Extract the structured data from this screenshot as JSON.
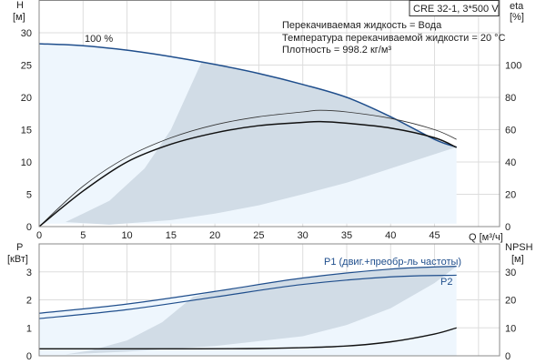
{
  "chart_data": [
    {
      "type": "line",
      "title": "CRE 32-1, 3*500 V",
      "annotations": [
        "Перекачиваемая жидкость = Вода",
        "Температура перекачиваемой жидкости = 20 °C",
        "Плотность = 998.2 кг/м³"
      ],
      "curve_label": "100 %",
      "xlabel": "Q [м³/ч]",
      "ylabel_top": "H",
      "ylabel_unit": "[м]",
      "y2label_top": "eta",
      "y2label_unit": "[%]",
      "xlim": [
        0,
        52.4
      ],
      "ylim": [
        0,
        35
      ],
      "y2lim": [
        0,
        140
      ],
      "xticks": [
        0,
        5,
        10,
        15,
        20,
        25,
        30,
        35,
        40,
        45
      ],
      "yticks": [
        0,
        5,
        10,
        15,
        20,
        25,
        30
      ],
      "y2ticks": [
        0,
        20,
        40,
        60,
        80,
        100
      ],
      "grid": true,
      "series": [
        {
          "name": "H",
          "axis": "left",
          "color": "#1f4e8c",
          "x": [
            0,
            5,
            10,
            15,
            20,
            25,
            30,
            35,
            40,
            45,
            47.5
          ],
          "y": [
            28.3,
            28,
            27.3,
            26.3,
            25.1,
            23.7,
            22,
            20,
            17,
            13.5,
            12.3
          ]
        },
        {
          "name": "eta1",
          "axis": "right",
          "color": "#333333",
          "x": [
            0,
            5,
            10,
            15,
            20,
            25,
            30,
            32,
            35,
            40,
            45,
            47.5
          ],
          "y": [
            0,
            25,
            43,
            55,
            63,
            68,
            71,
            72,
            71,
            67,
            60,
            54
          ]
        },
        {
          "name": "eta2",
          "axis": "right",
          "color": "#111111",
          "x": [
            0,
            5,
            10,
            15,
            20,
            25,
            30,
            32,
            35,
            40,
            45,
            47.5
          ],
          "y": [
            0,
            22,
            40,
            51,
            58,
            62.5,
            64.5,
            65,
            64,
            61,
            55,
            49
          ]
        }
      ]
    },
    {
      "type": "line",
      "xlabel": "Q [м³/ч]",
      "ylabel_top": "P",
      "ylabel_unit": "[кВт]",
      "y2label_top": "NPSH",
      "y2label_unit": "[м]",
      "xlim": [
        0,
        52.4
      ],
      "ylim": [
        0,
        4
      ],
      "y2lim": [
        0,
        40
      ],
      "yticks": [
        0,
        1,
        2,
        3
      ],
      "y2ticks": [
        0,
        10,
        20,
        30
      ],
      "grid": true,
      "series": [
        {
          "name": "P1 (двиг.+преобр-ль частоты)",
          "axis": "left",
          "color": "#1f4e8c",
          "x": [
            0,
            10,
            20,
            30,
            40,
            47.5
          ],
          "y": [
            1.52,
            1.85,
            2.3,
            2.78,
            3.1,
            3.2
          ]
        },
        {
          "name": "P2",
          "axis": "left",
          "color": "#1f4e8c",
          "x": [
            0,
            10,
            20,
            30,
            40,
            47.5
          ],
          "y": [
            1.33,
            1.65,
            2.1,
            2.55,
            2.82,
            2.88
          ]
        },
        {
          "name": "NPSH",
          "axis": "right",
          "color": "#111111",
          "x": [
            0,
            18,
            25,
            30,
            35,
            40,
            45,
            47.5
          ],
          "y": [
            2.5,
            2.5,
            2.6,
            2.9,
            3.5,
            5,
            7.8,
            10
          ]
        }
      ]
    }
  ]
}
